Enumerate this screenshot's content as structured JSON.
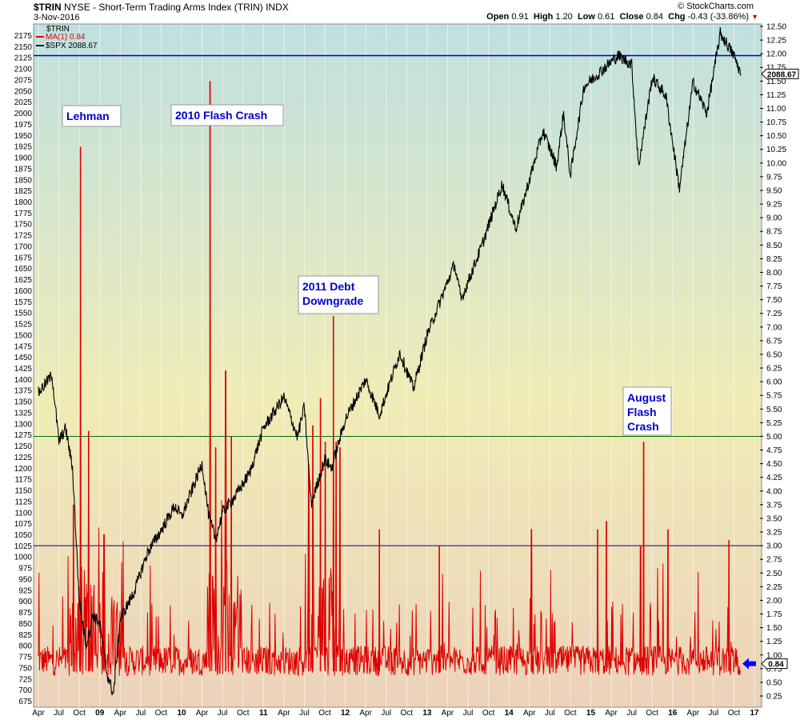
{
  "header": {
    "symbol": "$TRIN",
    "description": "NYSE - Short-Term Trading Arms Index (TRIN)",
    "exchange": "INDX",
    "date": "3-Nov-2016",
    "watermark": "© StockCharts.com",
    "open_label": "Open",
    "open": "0.91",
    "high_label": "High",
    "high": "1.20",
    "low_label": "Low",
    "low": "0.61",
    "close_label": "Close",
    "close": "0.84",
    "chg_label": "Chg",
    "chg": "-0.43 (-33.86%)"
  },
  "legend": {
    "trin": "$TRIN",
    "ma": "MA(1) 0.84",
    "spx": "$SPX 2088.67"
  },
  "colors": {
    "trin": "#dd0000",
    "spx": "#000000",
    "annotation_text": "#0000cc",
    "blue_line": "#0000cc",
    "green_line": "#007700",
    "navy_line": "#000080",
    "arrow": "#0000ff",
    "bg_top": "#bfe0e0",
    "bg_mid": "#f0ecb6",
    "bg_bottom": "#ecd2ba"
  },
  "chart_data": {
    "type": "line",
    "x_axis": {
      "start": "2008-04",
      "end": "2016-11",
      "tick_labels": [
        "Apr",
        "Jul",
        "Oct",
        "09",
        "Apr",
        "Jul",
        "Oct",
        "10",
        "Apr",
        "Jul",
        "Oct",
        "11",
        "Apr",
        "Jul",
        "Oct",
        "12",
        "Apr",
        "Jul",
        "Oct",
        "13",
        "Apr",
        "Jul",
        "Oct",
        "14",
        "Apr",
        "Jul",
        "Oct",
        "15",
        "Apr",
        "Jul",
        "Oct",
        "16",
        "Apr",
        "Jul",
        "Oct",
        "17"
      ]
    },
    "left_axis": {
      "series": "$SPX",
      "min": 675,
      "max": 2175,
      "step": 25
    },
    "right_axis": {
      "series": "$TRIN",
      "min": 0.25,
      "max": 12.5,
      "step": 0.25
    },
    "spx_anchors": [
      [
        "2008-04",
        1370
      ],
      [
        "2008-06",
        1410
      ],
      [
        "2008-07",
        1260
      ],
      [
        "2008-08",
        1290
      ],
      [
        "2008-09",
        1200
      ],
      [
        "2008-10",
        900
      ],
      [
        "2008-11",
        800
      ],
      [
        "2008-12",
        870
      ],
      [
        "2009-01",
        850
      ],
      [
        "2009-02",
        740
      ],
      [
        "2009-03",
        690
      ],
      [
        "2009-04",
        860
      ],
      [
        "2009-06",
        920
      ],
      [
        "2009-08",
        1010
      ],
      [
        "2009-10",
        1060
      ],
      [
        "2009-12",
        1115
      ],
      [
        "2010-01",
        1090
      ],
      [
        "2010-04",
        1210
      ],
      [
        "2010-05",
        1090
      ],
      [
        "2010-06",
        1040
      ],
      [
        "2010-07",
        1100
      ],
      [
        "2010-09",
        1140
      ],
      [
        "2010-11",
        1190
      ],
      [
        "2011-01",
        1290
      ],
      [
        "2011-04",
        1360
      ],
      [
        "2011-06",
        1270
      ],
      [
        "2011-07",
        1340
      ],
      [
        "2011-08",
        1120
      ],
      [
        "2011-10",
        1220
      ],
      [
        "2011-11",
        1200
      ],
      [
        "2012-01",
        1310
      ],
      [
        "2012-04",
        1400
      ],
      [
        "2012-06",
        1320
      ],
      [
        "2012-09",
        1460
      ],
      [
        "2012-11",
        1380
      ],
      [
        "2013-01",
        1500
      ],
      [
        "2013-05",
        1660
      ],
      [
        "2013-06",
        1580
      ],
      [
        "2013-09",
        1700
      ],
      [
        "2013-12",
        1840
      ],
      [
        "2014-02",
        1740
      ],
      [
        "2014-06",
        1960
      ],
      [
        "2014-08",
        1880
      ],
      [
        "2014-09",
        2000
      ],
      [
        "2014-10",
        1860
      ],
      [
        "2014-12",
        2060
      ],
      [
        "2015-05",
        2130
      ],
      [
        "2015-07",
        2110
      ],
      [
        "2015-08",
        1880
      ],
      [
        "2015-10",
        2080
      ],
      [
        "2015-12",
        2040
      ],
      [
        "2016-02",
        1830
      ],
      [
        "2016-04",
        2070
      ],
      [
        "2016-06",
        2000
      ],
      [
        "2016-08",
        2180
      ],
      [
        "2016-10",
        2130
      ],
      [
        "2016-11",
        2088.67
      ]
    ],
    "trin_spikes": [
      [
        "2008-10-06",
        10.3
      ],
      [
        "2008-09-05",
        3.75
      ],
      [
        "2008-11-12",
        5.1
      ],
      [
        "2009-01-20",
        3.2
      ],
      [
        "2010-05-06",
        11.5
      ],
      [
        "2010-06-01",
        4.8
      ],
      [
        "2010-07-15",
        6.2
      ],
      [
        "2010-08-10",
        5.0
      ],
      [
        "2011-07-20",
        4.5
      ],
      [
        "2011-08-08",
        5.2
      ],
      [
        "2011-09-12",
        5.7
      ],
      [
        "2011-10-03",
        4.9
      ],
      [
        "2011-11-09",
        7.2
      ],
      [
        "2011-11-21",
        4.9
      ],
      [
        "2011-12-08",
        4.8
      ],
      [
        "2012-06-01",
        3.3
      ],
      [
        "2013-02-25",
        3.0
      ],
      [
        "2014-04-10",
        3.3
      ],
      [
        "2015-02-01",
        3.3
      ],
      [
        "2015-03-10",
        3.45
      ],
      [
        "2015-08-24",
        4.9
      ],
      [
        "2015-08-10",
        3.0
      ],
      [
        "2015-12-11",
        3.3
      ],
      [
        "2016-09-09",
        3.1
      ]
    ],
    "reference_lines": [
      {
        "axis": "left",
        "value": 2130,
        "color": "#0000cc"
      },
      {
        "axis": "right",
        "value": 5.0,
        "color": "#007700"
      },
      {
        "axis": "right",
        "value": 3.0,
        "color": "#000080"
      }
    ],
    "last_values": {
      "spx": "2088.67",
      "trin": "0.84"
    },
    "annotations": [
      {
        "text": [
          "Lehman"
        ],
        "date": "2008-10-06"
      },
      {
        "text": [
          "2010 Flash Crash"
        ],
        "date": "2010-05-06"
      },
      {
        "text": [
          "2011 Debt",
          "Downgrade"
        ],
        "date": "2011-11-09"
      },
      {
        "text": [
          "August",
          "Flash",
          "Crash"
        ],
        "date": "2015-08-24"
      }
    ]
  }
}
